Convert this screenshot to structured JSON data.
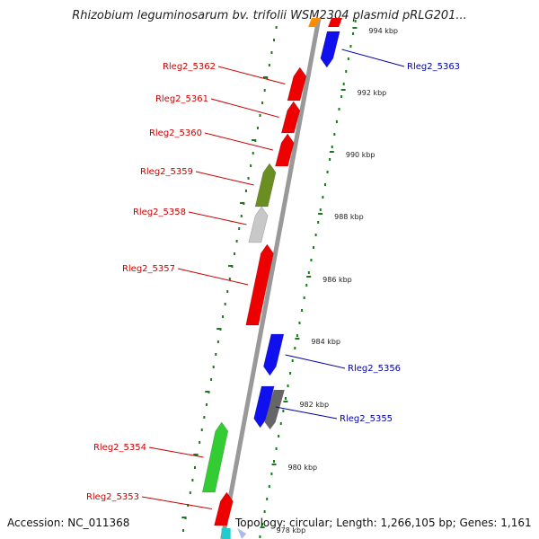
{
  "title": "Rhizobium leguminosarum bv. trifolii WSM2304 plasmid pRLG201...",
  "footer": {
    "accession": "Accession: NC_011368",
    "summary": "Topology: circular; Length: 1,266,105 bp; Genes: 1,161"
  },
  "colors": {
    "forward_label": "#cc0000",
    "reverse_label": "#0000aa",
    "backbone": "#999999",
    "tick": "#1a7a1a"
  },
  "ticks": [
    "994 kbp",
    "992 kbp",
    "990 kbp",
    "988 kbp",
    "986 kbp",
    "984 kbp",
    "982 kbp",
    "980 kbp",
    "978 kbp"
  ],
  "genes": [
    {
      "name": "Rleg2_5363",
      "strand": "reverse",
      "color": "#1010ee"
    },
    {
      "name": "Rleg2_5362",
      "strand": "forward",
      "color": "#ee0000"
    },
    {
      "name": "Rleg2_5361",
      "strand": "forward",
      "color": "#ee0000"
    },
    {
      "name": "Rleg2_5360",
      "strand": "forward",
      "color": "#ee0000"
    },
    {
      "name": "Rleg2_5359",
      "strand": "forward",
      "color": "#6b8e23"
    },
    {
      "name": "Rleg2_5358",
      "strand": "forward",
      "color": "#c8c8c8"
    },
    {
      "name": "Rleg2_5357",
      "strand": "forward",
      "color": "#ee0000"
    },
    {
      "name": "Rleg2_5356",
      "strand": "reverse",
      "color": "#1010ee"
    },
    {
      "name": "Rleg2_5355",
      "strand": "reverse",
      "color": "#1010ee"
    },
    {
      "name": "Rleg2_5354",
      "strand": "forward",
      "color": "#33cc33"
    },
    {
      "name": "Rleg2_5353",
      "strand": "forward",
      "color": "#ee0000"
    }
  ]
}
